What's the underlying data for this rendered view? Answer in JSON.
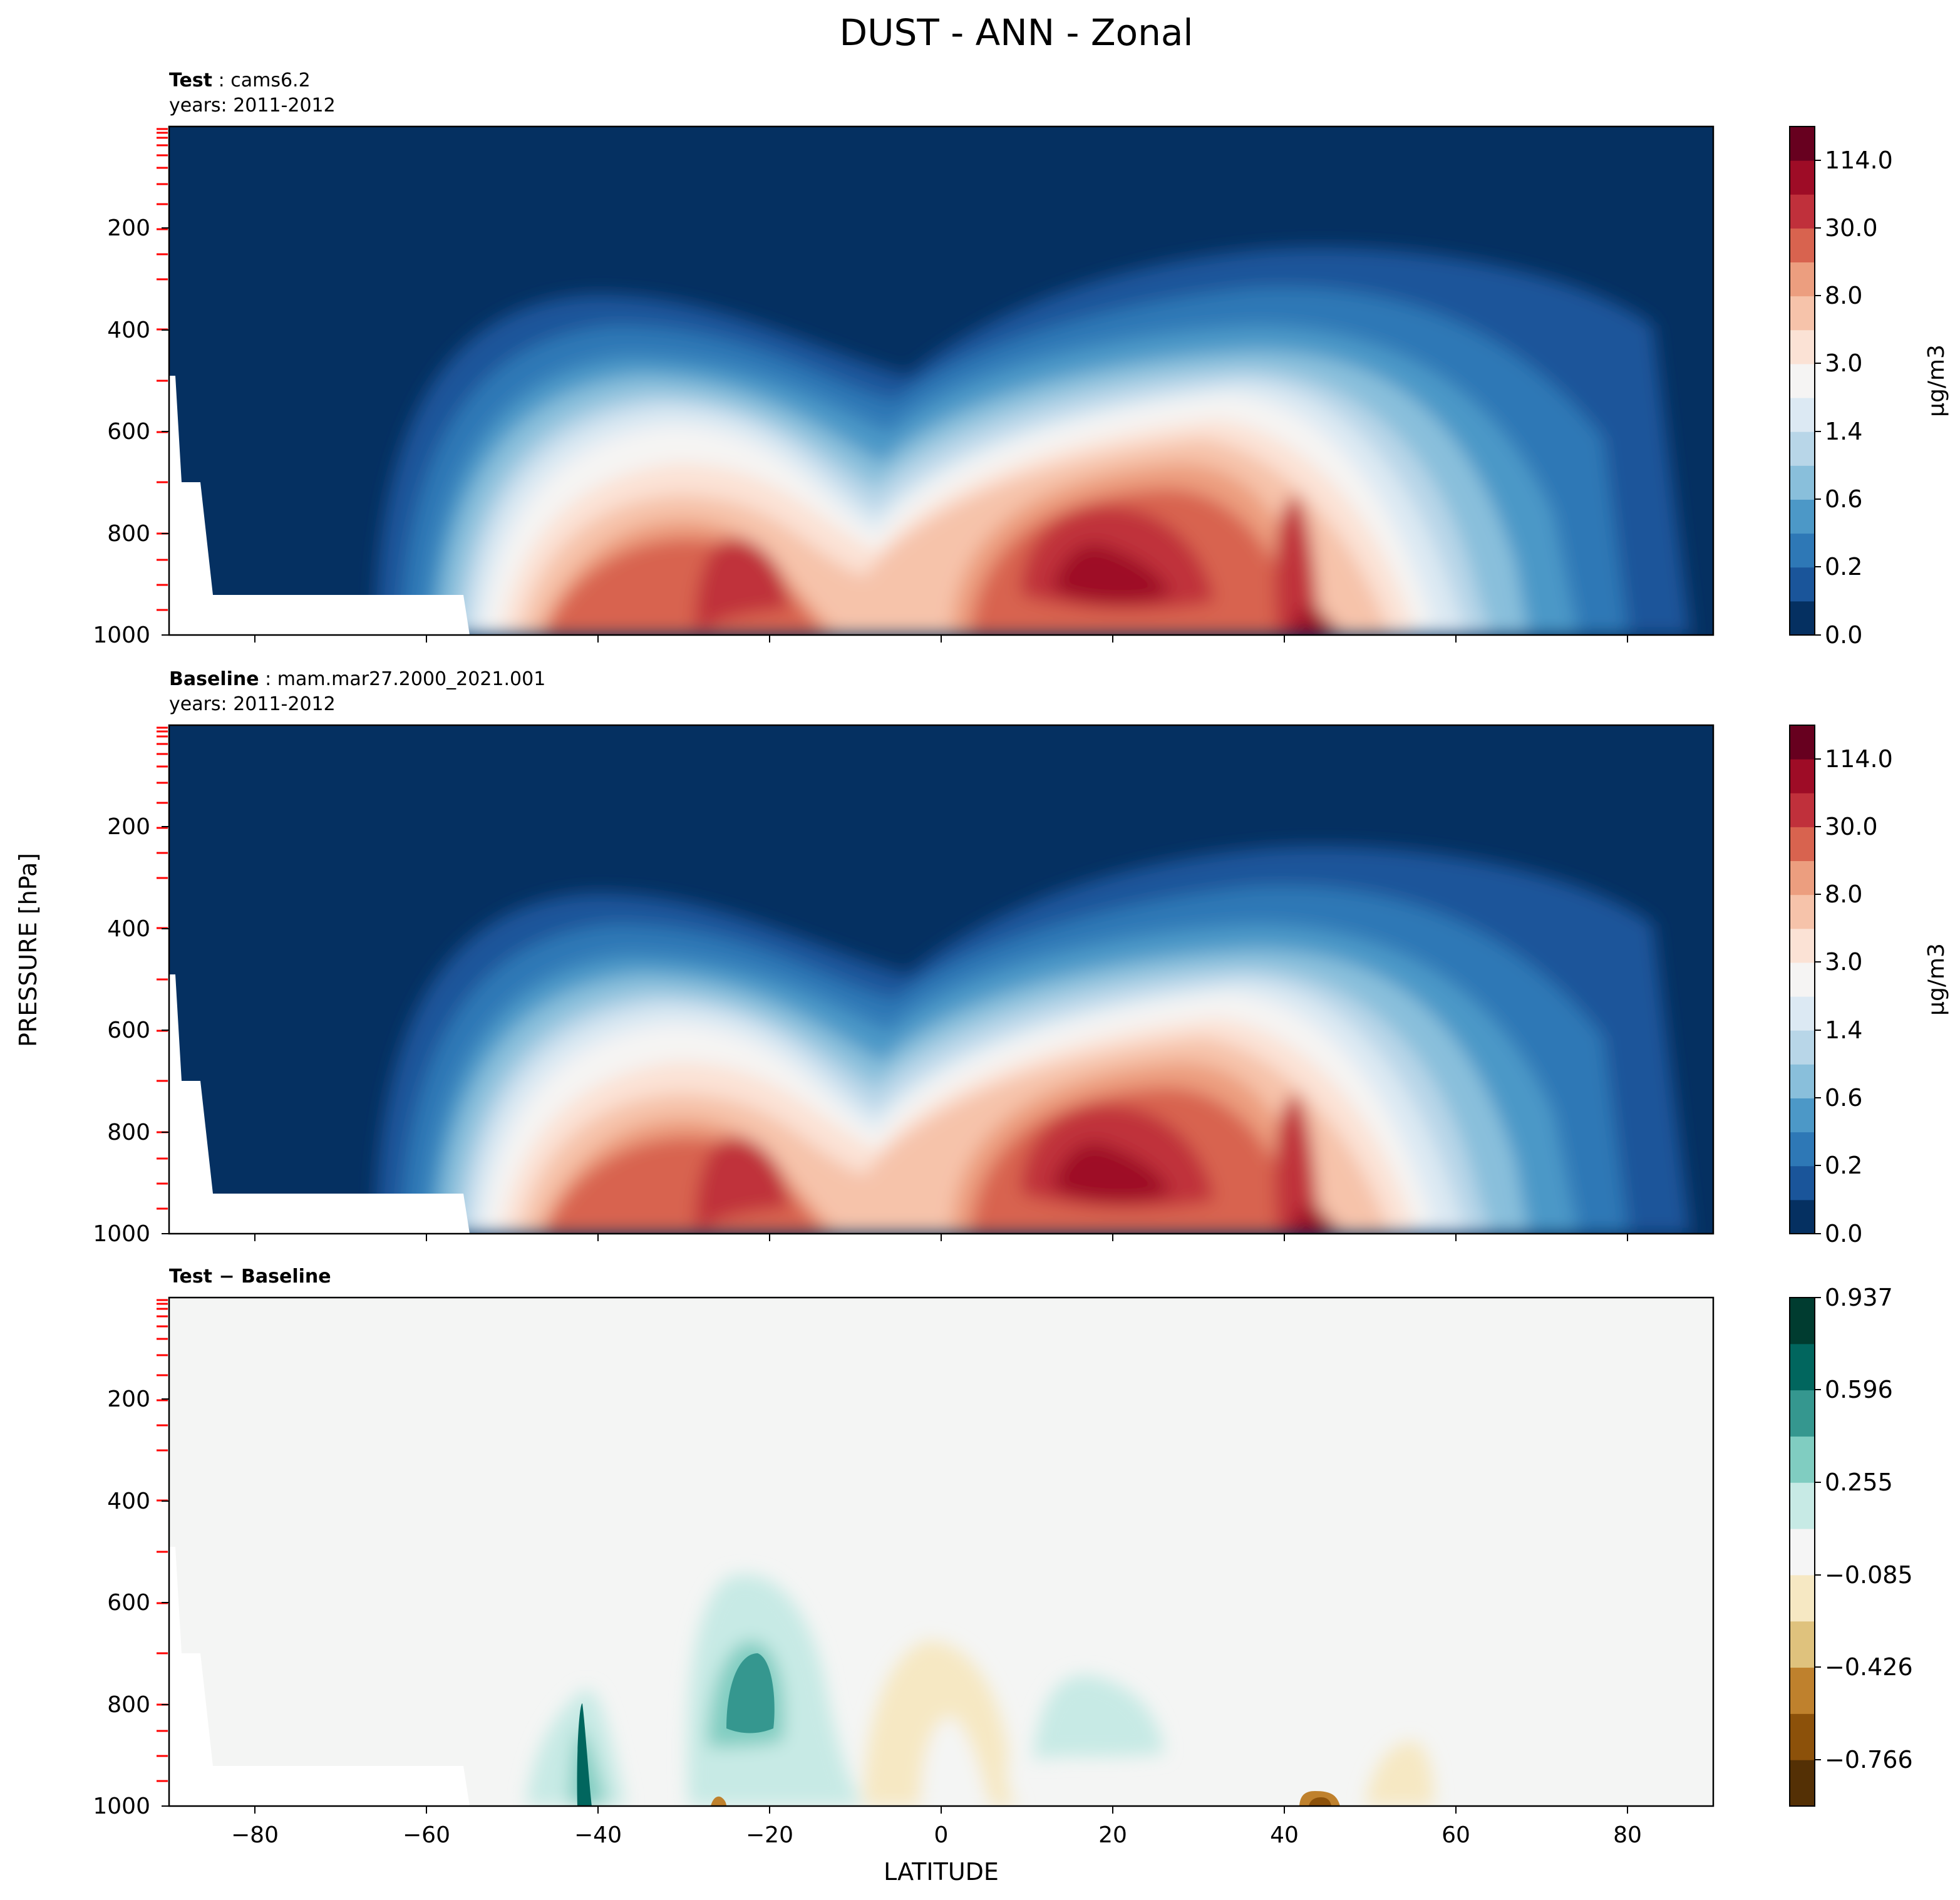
{
  "figure": {
    "title": "DUST - ANN - Zonal",
    "ylabel": "PRESSURE [hPa]",
    "xlabel": "LATITUDE",
    "panel_labels": {
      "test_bold": "Test",
      "test_name": "cams6.2",
      "test_years": "years: 2011-2012",
      "base_bold": "Baseline",
      "base_name": "mam.mar27.2000_2021.001",
      "base_years": "years: 2011-2012",
      "diff_bold": "Test − Baseline"
    },
    "units": "μg/m3"
  },
  "chart_data": [
    {
      "type": "heatmap",
      "panel": "test",
      "title": "Test: cams6.2",
      "subtitle": "years: 2011-2012",
      "xlabel": "",
      "ylabel": "PRESSURE [hPa]",
      "xlim": [
        -90,
        90
      ],
      "ylim": [
        1000,
        0
      ],
      "yticks": [
        200,
        400,
        600,
        800,
        1000
      ],
      "xticks": [
        -80,
        -60,
        -40,
        -20,
        0,
        20,
        40,
        60,
        80
      ],
      "colorbar": {
        "label": "μg/m3",
        "ticklabels": [
          "114.0",
          "30.0",
          "8.0",
          "3.0",
          "1.4",
          "0.6",
          "0.2",
          "0.0"
        ],
        "colors": [
          "#053061",
          "#1a559a",
          "#2e78b6",
          "#4c98c7",
          "#89bfdb",
          "#b8d6e8",
          "#dce9f3",
          "#f5f4f3",
          "#fbe2d5",
          "#f6c3aa",
          "#ec9e7f",
          "#d8634f",
          "#c0303b",
          "#9e0c26",
          "#67001f"
        ]
      },
      "peaks": [
        {
          "lat": 18,
          "pressure": 900,
          "level": "30-114"
        },
        {
          "lat": -25,
          "pressure": 900,
          "level": "30-114"
        },
        {
          "lat": 44,
          "pressure": 970,
          "level": ">114"
        }
      ]
    },
    {
      "type": "heatmap",
      "panel": "baseline",
      "title": "Baseline: mam.mar27.2000_2021.001",
      "subtitle": "years: 2011-2012",
      "xlabel": "",
      "ylabel": "PRESSURE [hPa]",
      "xlim": [
        -90,
        90
      ],
      "ylim": [
        1000,
        0
      ],
      "yticks": [
        200,
        400,
        600,
        800,
        1000
      ],
      "xticks": [
        -80,
        -60,
        -40,
        -20,
        0,
        20,
        40,
        60,
        80
      ],
      "colorbar": {
        "label": "μg/m3",
        "ticklabels": [
          "114.0",
          "30.0",
          "8.0",
          "3.0",
          "1.4",
          "0.6",
          "0.2",
          "0.0"
        ],
        "colors": [
          "#053061",
          "#1a559a",
          "#2e78b6",
          "#4c98c7",
          "#89bfdb",
          "#b8d6e8",
          "#dce9f3",
          "#f5f4f3",
          "#fbe2d5",
          "#f6c3aa",
          "#ec9e7f",
          "#d8634f",
          "#c0303b",
          "#9e0c26",
          "#67001f"
        ]
      }
    },
    {
      "type": "heatmap",
      "panel": "difference",
      "title": "Test − Baseline",
      "xlabel": "LATITUDE",
      "ylabel": "PRESSURE [hPa]",
      "xlim": [
        -90,
        90
      ],
      "ylim": [
        1000,
        0
      ],
      "yticks": [
        200,
        400,
        600,
        800,
        1000
      ],
      "xticks": [
        -80,
        -60,
        -40,
        -20,
        0,
        20,
        40,
        60,
        80
      ],
      "colorbar": {
        "label": "",
        "ticklabels": [
          "0.937",
          "0.596",
          "0.255",
          "−0.085",
          "−0.426",
          "−0.766"
        ],
        "colors": [
          "#543005",
          "#8c510a",
          "#bf812d",
          "#dfc27d",
          "#f6e8c3",
          "#f5f5f5",
          "#c7eae5",
          "#80cdc1",
          "#35978f",
          "#01665e",
          "#003c30"
        ]
      }
    }
  ]
}
